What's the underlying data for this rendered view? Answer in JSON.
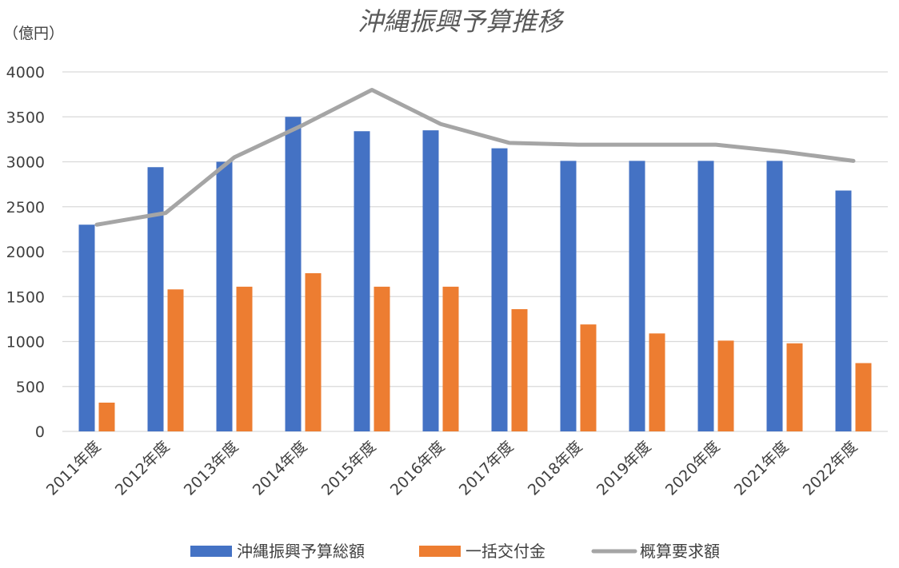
{
  "chart_data": {
    "type": "bar",
    "title": "沖縄振興予算推移",
    "unit_label": "（億円）",
    "categories": [
      "2011年度",
      "2012年度",
      "2013年度",
      "2014年度",
      "2015年度",
      "2016年度",
      "2017年度",
      "2018年度",
      "2019年度",
      "2020年度",
      "2021年度",
      "2022年度"
    ],
    "yticks": [
      "0",
      "500",
      "1000",
      "1500",
      "2000",
      "2500",
      "3000",
      "3500",
      "4000"
    ],
    "ylim": [
      0,
      4000
    ],
    "grid": true,
    "legend_position": "bottom",
    "series": [
      {
        "name": "沖縄振興予算総額",
        "kind": "bar",
        "color": "#4472C4",
        "values": [
          2300,
          2940,
          3000,
          3500,
          3340,
          3350,
          3150,
          3010,
          3010,
          3010,
          3010,
          2680
        ]
      },
      {
        "name": "一括交付金",
        "kind": "bar",
        "color": "#ED7D31",
        "values": [
          320,
          1580,
          1610,
          1760,
          1610,
          1610,
          1360,
          1190,
          1090,
          1010,
          980,
          760
        ]
      },
      {
        "name": "概算要求額",
        "kind": "line",
        "color": "#A5A5A5",
        "values": [
          2300,
          2430,
          3050,
          3410,
          3800,
          3420,
          3210,
          3190,
          3190,
          3190,
          3110,
          3010
        ]
      }
    ]
  }
}
